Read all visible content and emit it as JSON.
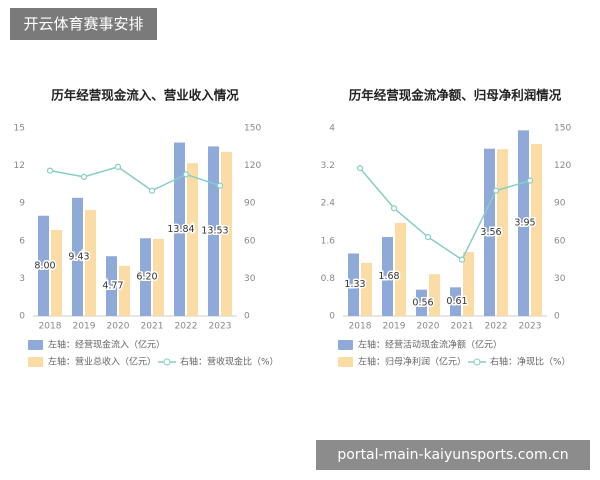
{
  "header_label": "开云体育赛事安排",
  "watermark": "portal-main-kaiyunsports.com.cn",
  "chart_data": [
    {
      "type": "bar",
      "title": "历年经营现金流入、营业收入情况",
      "categories": [
        "2018",
        "2019",
        "2020",
        "2021",
        "2022",
        "2023"
      ],
      "ylim": [
        0,
        15
      ],
      "yticks": [
        0,
        3,
        6,
        9,
        12,
        15
      ],
      "y2lim": [
        0,
        150
      ],
      "y2ticks": [
        0,
        30,
        60,
        90,
        120,
        150
      ],
      "grid": false,
      "legend": "bottom",
      "series": [
        {
          "name": "左轴：经营现金流入（亿元）",
          "color": "#8fa9d8",
          "values": [
            8.0,
            9.43,
            4.77,
            6.2,
            13.84,
            13.53
          ],
          "value_labels": [
            "8.00",
            "9.43",
            "4.77",
            "6.20",
            "13.84",
            "13.53"
          ]
        },
        {
          "name": "左轴：营业总收入（亿元）",
          "color": "#fcdca5",
          "values": [
            6.86,
            8.46,
            4.0,
            6.15,
            12.2,
            13.1
          ]
        },
        {
          "name": "右轴：营收现金比（%）",
          "color": "#86cfc6",
          "type": "line",
          "axis": "y2",
          "values": [
            116,
            111,
            119,
            100,
            113,
            104
          ]
        }
      ]
    },
    {
      "type": "bar",
      "title": "历年经营现金流净额、归母净利润情况",
      "categories": [
        "2018",
        "2019",
        "2020",
        "2021",
        "2022",
        "2023"
      ],
      "ylim": [
        0,
        4
      ],
      "yticks": [
        0,
        0.8,
        1.6,
        2.4,
        3.2,
        4
      ],
      "y2lim": [
        0,
        150
      ],
      "y2ticks": [
        0,
        30,
        60,
        90,
        120,
        150
      ],
      "grid": false,
      "legend": "bottom",
      "series": [
        {
          "name": "左轴：经营活动现金流净额（亿元）",
          "color": "#8fa9d8",
          "values": [
            1.33,
            1.68,
            0.56,
            0.61,
            3.56,
            3.95
          ],
          "value_labels": [
            "1.33",
            "1.68",
            "0.56",
            "0.61",
            "3.56",
            "3.95"
          ]
        },
        {
          "name": "左轴：归母净利润（亿元）",
          "color": "#fcdca5",
          "values": [
            1.13,
            1.98,
            0.89,
            1.36,
            3.55,
            3.66
          ]
        },
        {
          "name": "右轴：净现比（%）",
          "color": "#86cfc6",
          "type": "line",
          "axis": "y2",
          "values": [
            118,
            86,
            63,
            45,
            100,
            108
          ]
        }
      ]
    }
  ]
}
